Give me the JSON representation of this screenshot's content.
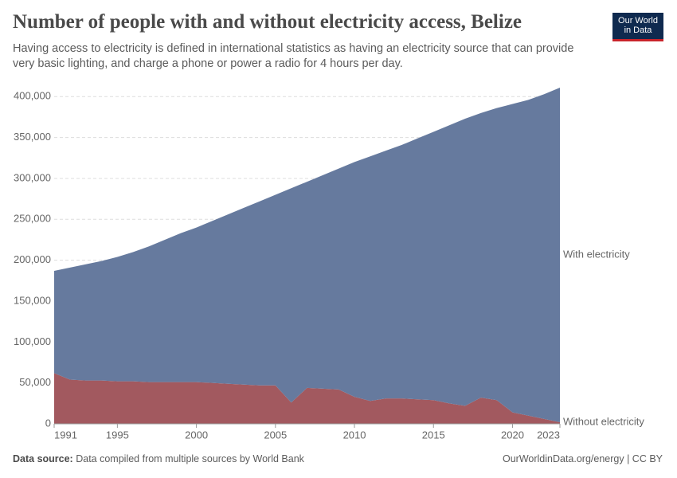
{
  "chart_data": {
    "type": "stacked-area",
    "title": "Number of people with and without electricity access, Belize",
    "subtitle": "Having access to electricity is defined in international statistics as having an electricity source that can provide very basic lighting, and charge a phone or power a radio for 4 hours per day.",
    "logo": [
      "Our World",
      "in Data"
    ],
    "source_label": "Data source:",
    "source": "Data compiled from multiple sources by World Bank",
    "footer_right": "OurWorldinData.org/energy | CC BY",
    "x": [
      1991,
      1992,
      1993,
      1994,
      1995,
      1996,
      1997,
      1998,
      1999,
      2000,
      2001,
      2002,
      2003,
      2004,
      2005,
      2006,
      2007,
      2008,
      2009,
      2010,
      2011,
      2012,
      2013,
      2014,
      2015,
      2016,
      2017,
      2018,
      2019,
      2020,
      2021,
      2022,
      2023
    ],
    "series": [
      {
        "name": "Without electricity",
        "color": "#a2595f",
        "values": [
          62000,
          54000,
          53000,
          53000,
          52000,
          52000,
          51000,
          51000,
          51000,
          51000,
          50000,
          49000,
          48000,
          47000,
          47000,
          26000,
          44000,
          43000,
          42000,
          33000,
          28000,
          31000,
          31000,
          30000,
          29000,
          25000,
          22000,
          32000,
          29000,
          14000,
          10000,
          6000,
          2000
        ]
      },
      {
        "name": "With electricity",
        "color": "#667a9e",
        "values": [
          125000,
          137000,
          142000,
          146000,
          152000,
          158000,
          166000,
          174000,
          182000,
          189000,
          198000,
          207000,
          216000,
          225000,
          233000,
          262000,
          252000,
          261000,
          270000,
          287000,
          299000,
          303000,
          310000,
          319000,
          328000,
          340000,
          351000,
          348000,
          357000,
          377000,
          386000,
          397000,
          409000
        ]
      }
    ],
    "xlim": [
      1991,
      2023
    ],
    "xticks": [
      1991,
      1995,
      2000,
      2005,
      2010,
      2015,
      2020,
      2023
    ],
    "ylim": [
      0,
      411000
    ],
    "yticks": [
      0,
      {
        "value": 50000,
        "label": "50,000"
      },
      {
        "value": 100000,
        "label": "100,000"
      },
      {
        "value": 150000,
        "label": "150,000"
      },
      {
        "value": 200000,
        "label": "200,000"
      },
      {
        "value": 250000,
        "label": "250,000"
      },
      {
        "value": 300000,
        "label": "300,000"
      },
      {
        "value": 350000,
        "label": "350,000"
      },
      {
        "value": 400000,
        "label": "400,000"
      }
    ],
    "grid": true
  }
}
